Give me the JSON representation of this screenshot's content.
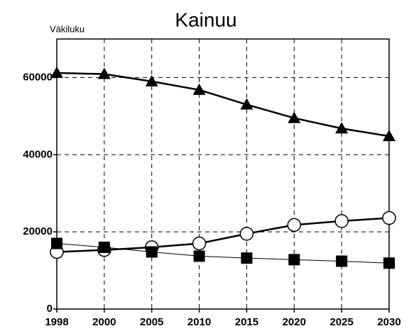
{
  "chart_data": {
    "type": "line",
    "title": "Kainuu",
    "y_label": "Väkiluku",
    "categories": [
      "1998",
      "2000",
      "2005",
      "2010",
      "2015",
      "2020",
      "2025",
      "2030"
    ],
    "series": [
      {
        "color": "#000000",
        "marker": "triangle",
        "line_width": 2.5,
        "values": [
          61200,
          60900,
          59000,
          56800,
          53000,
          49500,
          46800,
          44800
        ]
      },
      {
        "color": "#000000",
        "marker": "circle",
        "line_width": 2.5,
        "values": [
          14800,
          15300,
          16000,
          17000,
          19500,
          21800,
          22800,
          23600
        ]
      },
      {
        "color": "#000000",
        "marker": "square",
        "line_width": 1,
        "values": [
          17000,
          16000,
          14800,
          13700,
          13200,
          12800,
          12400,
          11900
        ]
      }
    ],
    "ylim": [
      0,
      70000
    ],
    "yticks": [
      0,
      20000,
      40000,
      60000
    ],
    "grid": true
  }
}
